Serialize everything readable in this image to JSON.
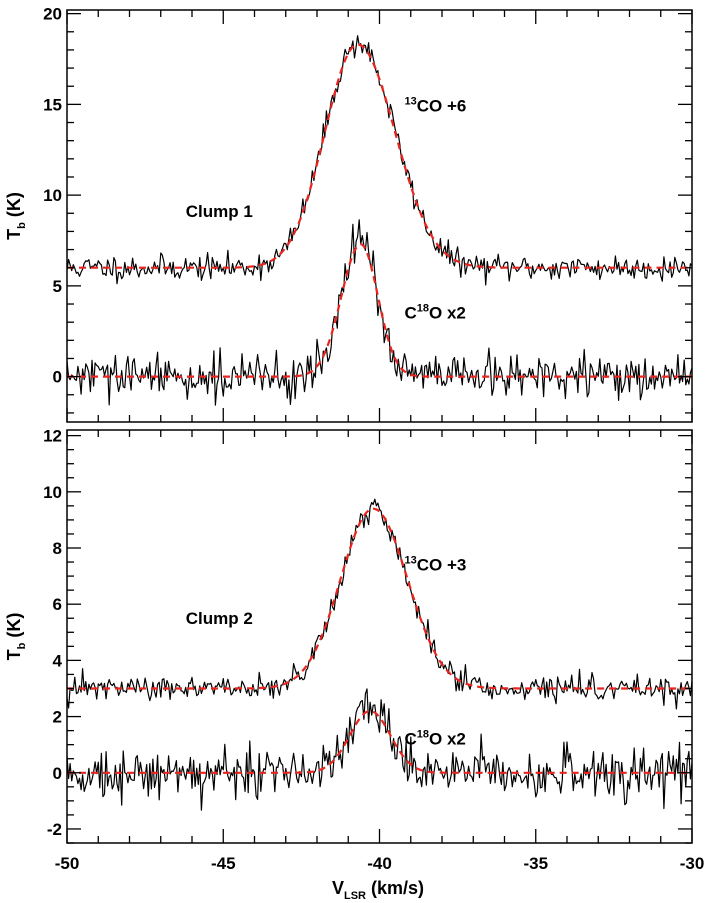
{
  "chart_data": [
    {
      "type": "line",
      "title": "",
      "xlabel": "V_LSR (km/s)",
      "ylabel": "T_b (K)",
      "xlim": [
        -50,
        -30
      ],
      "ylim": [
        -2.5,
        20.2
      ],
      "yticks": [
        0,
        5,
        10,
        15,
        20
      ],
      "yminor": 1,
      "xticks": [
        -50,
        -45,
        -40,
        -35,
        -30
      ],
      "xminor": 1,
      "clump_label": "Clump 1",
      "series": [
        {
          "name": "13CO +6 observed",
          "style": "histogram",
          "color": "#000000",
          "baseline": 6,
          "peak": 18.4,
          "center": -40.7,
          "sigma_left": 1.05,
          "sigma_right": 1.2,
          "noise": 0.35,
          "seed": 11
        },
        {
          "name": "13CO +6 fit",
          "style": "dashed",
          "color": "#e8251f",
          "baseline": 6,
          "peak": 18.3,
          "center": -40.7,
          "sigma_left": 1.05,
          "sigma_right": 1.2
        },
        {
          "name": "C18O x2 observed",
          "style": "histogram",
          "color": "#000000",
          "baseline": 0,
          "peak": 7.4,
          "center": -40.6,
          "sigma_left": 0.62,
          "sigma_right": 0.55,
          "noise": 0.6,
          "seed": 29
        },
        {
          "name": "C18O x2 fit",
          "style": "dashed",
          "color": "#e8251f",
          "baseline": 0,
          "peak": 7.3,
          "center": -40.6,
          "sigma_left": 0.62,
          "sigma_right": 0.55
        }
      ],
      "annotations": [
        {
          "sup": "13",
          "text": "CO +6",
          "x": -39.2,
          "y": 14.6
        },
        {
          "sup": "",
          "prefix": "C",
          "sup2": "18",
          "text": "O x2",
          "x": -39.2,
          "y": 3.2
        }
      ],
      "clump_pos": {
        "x": -46.2,
        "y": 8.8
      }
    },
    {
      "type": "line",
      "title": "",
      "xlabel": "V_LSR (km/s)",
      "ylabel": "T_b (K)",
      "xlim": [
        -50,
        -30
      ],
      "ylim": [
        -2.5,
        12.2
      ],
      "yticks": [
        -2,
        0,
        2,
        4,
        6,
        8,
        10,
        12
      ],
      "yminor": 0.5,
      "xticks": [
        -50,
        -45,
        -40,
        -35,
        -30
      ],
      "xminor": 1,
      "clump_label": "Clump 2",
      "series": [
        {
          "name": "13CO +3 observed",
          "style": "histogram",
          "color": "#000000",
          "baseline": 3,
          "peak": 9.4,
          "center": -40.2,
          "sigma_left": 1.05,
          "sigma_right": 1.1,
          "noise": 0.22,
          "seed": 47
        },
        {
          "name": "13CO +3 fit",
          "style": "dashed",
          "color": "#e8251f",
          "baseline": 3,
          "peak": 9.4,
          "center": -40.2,
          "sigma_left": 1.05,
          "sigma_right": 1.1
        },
        {
          "name": "C18O x2 observed",
          "style": "histogram",
          "color": "#000000",
          "baseline": 0,
          "peak": 2.4,
          "center": -40.3,
          "sigma_left": 0.65,
          "sigma_right": 0.65,
          "noise": 0.45,
          "seed": 73
        },
        {
          "name": "C18O x2 fit",
          "style": "dashed",
          "color": "#e8251f",
          "baseline": 0,
          "peak": 2.2,
          "center": -40.3,
          "sigma_left": 0.65,
          "sigma_right": 0.65
        }
      ],
      "annotations": [
        {
          "sup": "13",
          "text": "CO +3",
          "x": -39.2,
          "y": 7.2
        },
        {
          "sup": "",
          "prefix": "C",
          "sup2": "18",
          "text": "O x2",
          "x": -39.2,
          "y": 1.0
        }
      ],
      "clump_pos": {
        "x": -46.2,
        "y": 5.3
      }
    }
  ],
  "labels": {
    "xaxis_main": "V",
    "xaxis_sub": "LSR",
    "xaxis_units": " (km/s)",
    "yaxis_main": "T",
    "yaxis_sub": "b",
    "yaxis_units": " (K)"
  }
}
